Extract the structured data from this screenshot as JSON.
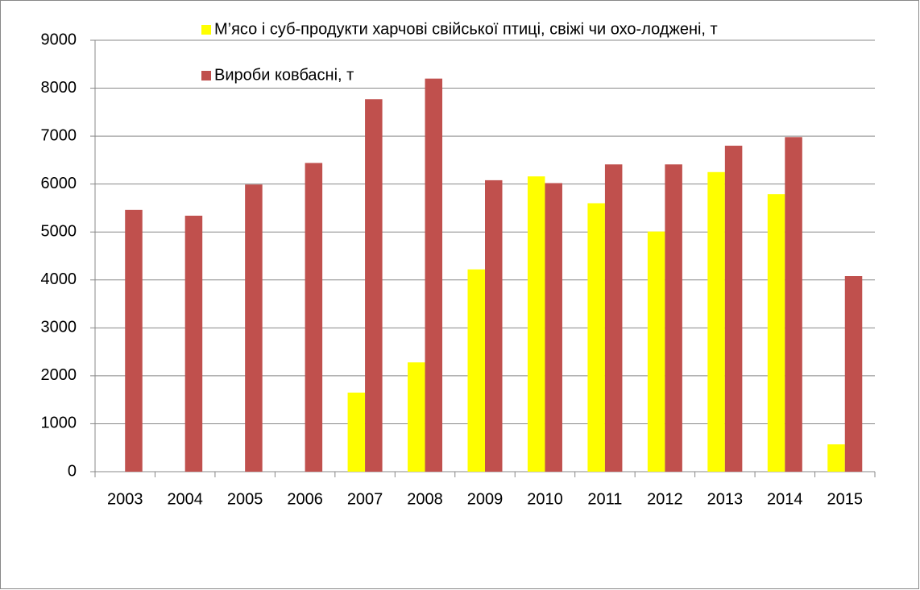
{
  "chart_data": {
    "type": "bar",
    "categories": [
      "2003",
      "2004",
      "2005",
      "2006",
      "2007",
      "2008",
      "2009",
      "2010",
      "2011",
      "2012",
      "2013",
      "2014",
      "2015"
    ],
    "series": [
      {
        "name": "М’ясо і суб-продукти харчові свійської птиці, свіжі чи охо-лоджені, т",
        "color": "#ffff00",
        "values": [
          0,
          0,
          0,
          0,
          1650,
          2280,
          4220,
          6160,
          5600,
          5010,
          6250,
          5790,
          570
        ]
      },
      {
        "name": "Вироби ковбасні, т",
        "color": "#c0504d",
        "values": [
          5460,
          5340,
          5990,
          6440,
          7770,
          8200,
          6080,
          6020,
          6410,
          6410,
          6800,
          6980,
          4080
        ]
      }
    ],
    "ylim": [
      0,
      9000
    ],
    "yticks": [
      0,
      1000,
      2000,
      3000,
      4000,
      5000,
      6000,
      7000,
      8000,
      9000
    ],
    "grid": true
  }
}
